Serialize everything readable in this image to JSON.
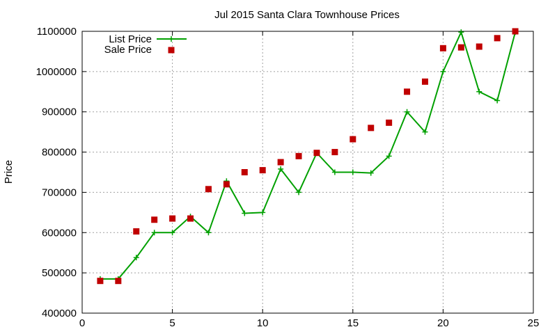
{
  "chart_data": {
    "type": "line",
    "title": "Jul 2015 Santa Clara Townhouse Prices",
    "xlabel": "",
    "ylabel": "Price",
    "xlim": [
      0,
      25
    ],
    "ylim": [
      400000,
      1100000
    ],
    "xticks": [
      0,
      5,
      10,
      15,
      20,
      25
    ],
    "yticks": [
      400000,
      500000,
      600000,
      700000,
      800000,
      900000,
      1000000,
      1100000
    ],
    "grid": true,
    "legend_position": "top-left",
    "series": [
      {
        "name": "List Price",
        "style": "lines+crosses",
        "color": "#00a000",
        "x": [
          1,
          2,
          3,
          4,
          5,
          6,
          7,
          8,
          9,
          10,
          11,
          12,
          13,
          14,
          15,
          16,
          17,
          18,
          19,
          20,
          21,
          22,
          23,
          24
        ],
        "y": [
          485000,
          485000,
          538000,
          600000,
          600000,
          640000,
          600000,
          728000,
          648000,
          650000,
          758000,
          700000,
          798000,
          750000,
          750000,
          748000,
          790000,
          900000,
          850000,
          1000000,
          1098000,
          950000,
          928000,
          1098000
        ]
      },
      {
        "name": "Sale Price",
        "style": "squares",
        "color": "#c00000",
        "x": [
          1,
          2,
          3,
          4,
          5,
          6,
          7,
          8,
          9,
          10,
          11,
          12,
          13,
          14,
          15,
          16,
          17,
          18,
          19,
          20,
          21,
          22,
          23,
          24
        ],
        "y": [
          480000,
          480000,
          603000,
          632000,
          635000,
          635000,
          708000,
          720000,
          750000,
          755000,
          775000,
          790000,
          798000,
          800000,
          832000,
          860000,
          873000,
          950000,
          975000,
          1058000,
          1060000,
          1062000,
          1083000,
          1100000
        ]
      }
    ]
  }
}
